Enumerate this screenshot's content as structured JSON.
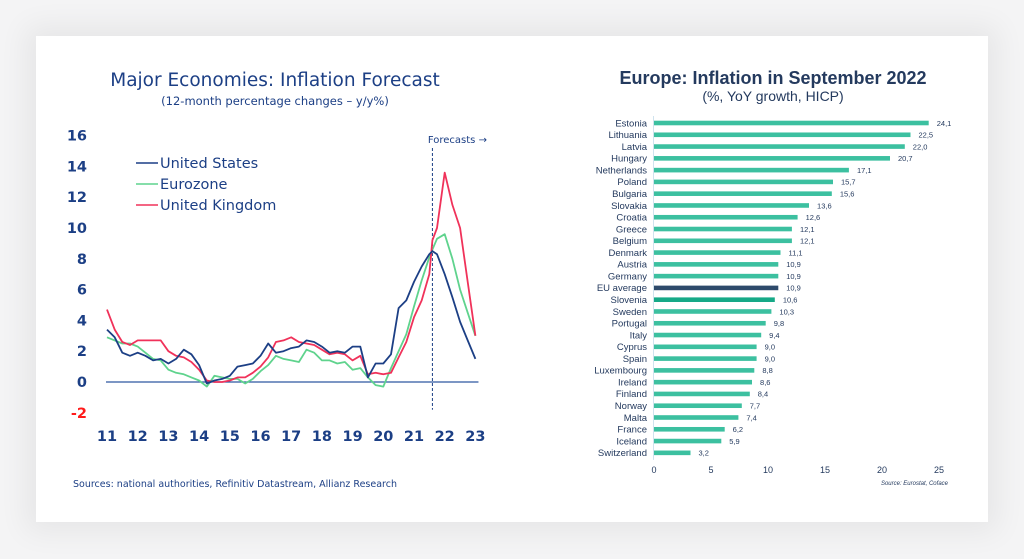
{
  "chart_data": [
    {
      "type": "line",
      "title": "Major Economies: Inflation Forecast",
      "subtitle": "(12-month percentage changes – y/y%)",
      "xlabel": "",
      "ylabel": "",
      "xlim": [
        2011,
        2023.1
      ],
      "ylim": [
        -2,
        16
      ],
      "xticks": [
        "11",
        "12",
        "13",
        "14",
        "15",
        "16",
        "17",
        "18",
        "19",
        "20",
        "21",
        "22",
        "23"
      ],
      "yticks": [
        {
          "value": 16,
          "label": "16",
          "color": "#1c3f85"
        },
        {
          "value": 14,
          "label": "14",
          "color": "#1c3f85"
        },
        {
          "value": 12,
          "label": "12",
          "color": "#1c3f85"
        },
        {
          "value": 10,
          "label": "10",
          "color": "#1c3f85"
        },
        {
          "value": 8,
          "label": "8",
          "color": "#1c3f85"
        },
        {
          "value": 6,
          "label": "6",
          "color": "#1c3f85"
        },
        {
          "value": 4,
          "label": "4",
          "color": "#1c3f85"
        },
        {
          "value": 2,
          "label": "2",
          "color": "#1c3f85"
        },
        {
          "value": 0,
          "label": "0",
          "color": "#1c3f85"
        },
        {
          "value": -2,
          "label": "-2",
          "color": "#ff1a1a"
        }
      ],
      "grid": false,
      "legend_position": "top-left",
      "forecast_start": 2021.6,
      "forecast_label": "Forecasts →",
      "source": "Sources: national authorities, Refinitiv Datastream, Allianz Research",
      "series": [
        {
          "name": "United States",
          "color": "#1c3f85",
          "x": [
            2011.0,
            2011.25,
            2011.5,
            2011.75,
            2012.0,
            2012.25,
            2012.5,
            2012.75,
            2013.0,
            2013.25,
            2013.5,
            2013.75,
            2014.0,
            2014.25,
            2014.5,
            2014.75,
            2015.0,
            2015.25,
            2015.5,
            2015.75,
            2016.0,
            2016.25,
            2016.5,
            2016.75,
            2017.0,
            2017.25,
            2017.5,
            2017.75,
            2018.0,
            2018.25,
            2018.5,
            2018.75,
            2019.0,
            2019.25,
            2019.5,
            2019.75,
            2020.0,
            2020.25,
            2020.5,
            2020.75,
            2021.0,
            2021.25,
            2021.5,
            2021.6,
            2021.75,
            2022.0,
            2022.25,
            2022.5,
            2022.75,
            2023.0
          ],
          "y": [
            3.4,
            2.9,
            1.9,
            1.7,
            1.9,
            1.7,
            1.4,
            1.5,
            1.2,
            1.5,
            2.1,
            1.8,
            1.1,
            -0.1,
            0.1,
            0.2,
            0.4,
            1.0,
            1.1,
            1.2,
            1.7,
            2.5,
            1.9,
            2.0,
            2.2,
            2.3,
            2.7,
            2.6,
            2.3,
            1.9,
            2.0,
            1.9,
            2.3,
            2.3,
            0.3,
            1.2,
            1.2,
            1.8,
            4.8,
            5.3,
            6.5,
            7.5,
            8.3,
            8.5,
            8.3,
            7.0,
            5.5,
            3.9,
            2.7,
            1.5
          ]
        },
        {
          "name": "Eurozone",
          "color": "#5fd38d",
          "x": [
            2011.0,
            2011.25,
            2011.5,
            2011.75,
            2012.0,
            2012.25,
            2012.5,
            2012.75,
            2013.0,
            2013.25,
            2013.5,
            2013.75,
            2014.0,
            2014.25,
            2014.5,
            2014.75,
            2015.0,
            2015.25,
            2015.5,
            2015.75,
            2016.0,
            2016.25,
            2016.5,
            2016.75,
            2017.0,
            2017.25,
            2017.5,
            2017.75,
            2018.0,
            2018.25,
            2018.5,
            2018.75,
            2019.0,
            2019.25,
            2019.5,
            2019.75,
            2020.0,
            2020.25,
            2020.5,
            2020.75,
            2021.0,
            2021.25,
            2021.5,
            2021.6,
            2021.75,
            2022.0,
            2022.25,
            2022.5,
            2022.75,
            2023.0
          ],
          "y": [
            2.9,
            2.7,
            2.5,
            2.5,
            2.3,
            1.9,
            1.5,
            1.4,
            0.8,
            0.6,
            0.5,
            0.3,
            0.1,
            -0.3,
            0.4,
            0.3,
            0.2,
            0.2,
            -0.1,
            0.2,
            0.7,
            1.1,
            1.7,
            1.5,
            1.4,
            1.3,
            2.1,
            1.9,
            1.4,
            1.4,
            1.2,
            1.3,
            0.8,
            0.9,
            0.3,
            -0.2,
            -0.3,
            0.9,
            2.0,
            3.1,
            4.9,
            6.6,
            8.1,
            8.6,
            9.3,
            9.6,
            8.0,
            6.0,
            4.5,
            3.0
          ]
        },
        {
          "name": "United Kingdom",
          "color": "#f0325a",
          "x": [
            2011.0,
            2011.25,
            2011.5,
            2011.75,
            2012.0,
            2012.25,
            2012.5,
            2012.75,
            2013.0,
            2013.25,
            2013.5,
            2013.75,
            2014.0,
            2014.25,
            2014.5,
            2014.75,
            2015.0,
            2015.25,
            2015.5,
            2015.75,
            2016.0,
            2016.25,
            2016.5,
            2016.75,
            2017.0,
            2017.25,
            2017.5,
            2017.75,
            2018.0,
            2018.25,
            2018.5,
            2018.75,
            2019.0,
            2019.25,
            2019.5,
            2019.75,
            2020.0,
            2020.25,
            2020.5,
            2020.75,
            2021.0,
            2021.25,
            2021.5,
            2021.6,
            2021.75,
            2022.0,
            2022.25,
            2022.5,
            2022.75,
            2023.0
          ],
          "y": [
            4.7,
            3.4,
            2.6,
            2.4,
            2.7,
            2.7,
            2.7,
            2.7,
            2.0,
            1.7,
            1.6,
            1.3,
            0.8,
            0.1,
            0.0,
            0.0,
            0.1,
            0.3,
            0.3,
            0.6,
            1.0,
            1.6,
            2.6,
            2.7,
            2.9,
            2.6,
            2.5,
            2.4,
            2.1,
            1.8,
            1.9,
            1.8,
            1.4,
            1.7,
            0.5,
            0.6,
            0.5,
            0.6,
            1.6,
            2.6,
            4.2,
            5.3,
            7.0,
            9.2,
            10.0,
            13.6,
            11.5,
            10.0,
            6.5,
            3.0
          ]
        }
      ]
    },
    {
      "type": "bar",
      "orientation": "horizontal",
      "title": "Europe: Inflation in September 2022",
      "subtitle": "(%, YoY growth, HICP)",
      "xlabel": "",
      "ylabel": "",
      "xlim": [
        0,
        27
      ],
      "xticks": [
        "0",
        "5",
        "10",
        "15",
        "20",
        "25"
      ],
      "xtick_values": [
        0,
        5,
        10,
        15,
        20,
        25
      ],
      "grid": false,
      "source": "Source: Eurostat, Coface",
      "default_color": "#3cc0a0",
      "categories": [
        "Estonia",
        "Lithuania",
        "Latvia",
        "Hungary",
        "Netherlands",
        "Poland",
        "Bulgaria",
        "Slovakia",
        "Croatia",
        "Greece",
        "Belgium",
        "Denmark",
        "Austria",
        "Germany",
        "EU average",
        "Slovenia",
        "Sweden",
        "Portugal",
        "Italy",
        "Cyprus",
        "Spain",
        "Luxembourg",
        "Ireland",
        "Finland",
        "Norway",
        "Malta",
        "France",
        "Iceland",
        "Switzerland"
      ],
      "values": [
        24.1,
        22.5,
        22.0,
        20.7,
        17.1,
        15.7,
        15.6,
        13.6,
        12.6,
        12.1,
        12.1,
        11.1,
        10.9,
        10.9,
        10.9,
        10.6,
        10.3,
        9.8,
        9.4,
        9.0,
        9.0,
        8.8,
        8.6,
        8.4,
        7.7,
        7.4,
        6.2,
        5.9,
        3.2
      ],
      "value_labels": [
        "24,1",
        "22,5",
        "22,0",
        "20,7",
        "17,1",
        "15,7",
        "15,6",
        "13,6",
        "12,6",
        "12,1",
        "12,1",
        "11,1",
        "10,9",
        "10,9",
        "10,9",
        "10,6",
        "10,3",
        "9,8",
        "9,4",
        "9,0",
        "9,0",
        "8,8",
        "8,6",
        "8,4",
        "7,7",
        "7,4",
        "6,2",
        "5,9",
        "3,2"
      ],
      "highlight": {
        "EU average": "#2e4a6b",
        "Slovenia": "#16a987"
      }
    }
  ]
}
